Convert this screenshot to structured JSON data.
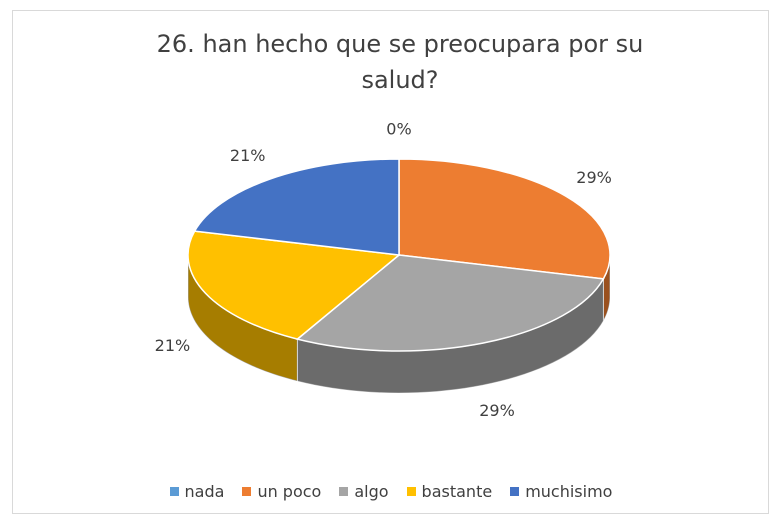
{
  "chart_data": {
    "type": "pie",
    "title": "26. han hecho que se preocupara por su salud?",
    "categories": [
      "nada",
      "un poco",
      "algo",
      "bastante",
      "muchisimo"
    ],
    "values": [
      0,
      29,
      29,
      21,
      21
    ],
    "value_labels": [
      "0%",
      "29%",
      "29%",
      "21%",
      "21%"
    ],
    "colors": [
      "#5b9bd5",
      "#ed7d31",
      "#a5a5a5",
      "#ffc000",
      "#4472c4"
    ],
    "legend": "bottom"
  }
}
